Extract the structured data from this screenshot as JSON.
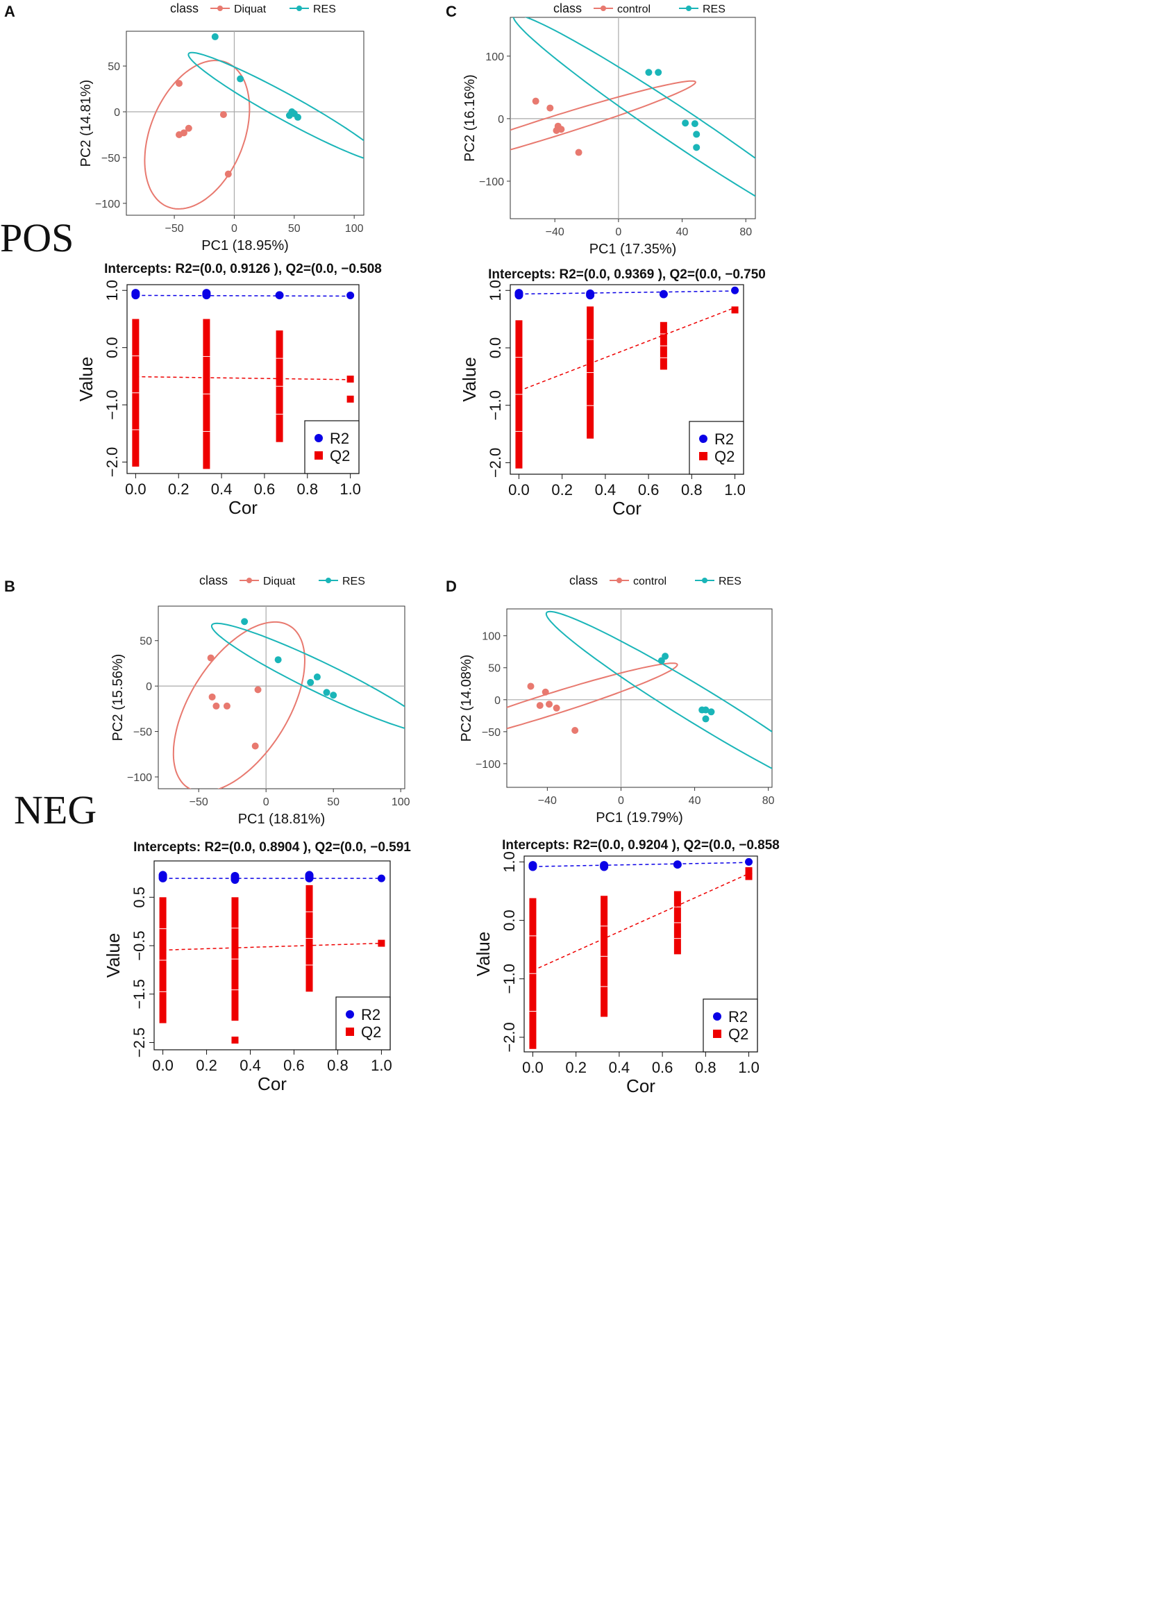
{
  "figure": {
    "panel_labels": [
      "A",
      "B",
      "C",
      "D"
    ],
    "mode_labels": {
      "pos": "POS",
      "neg": "NEG"
    }
  },
  "colors": {
    "red": "#e8796f",
    "teal": "#1ab5b8",
    "blue": "#0a00e6",
    "q2": "#ee0000",
    "axis": "#333333"
  },
  "chart_data": [
    {
      "id": "A-pca",
      "type": "scatter",
      "panel": "A",
      "legend_title": "class",
      "legend": [
        "Diquat",
        "RES"
      ],
      "xlabel": "PC1 (18.95%)",
      "ylabel": "PC2 (14.81%)",
      "xlim": [
        -90,
        108
      ],
      "ylim": [
        -113,
        88
      ],
      "xticks": [
        -50,
        0,
        50,
        100
      ],
      "yticks": [
        -100,
        -50,
        0,
        50
      ],
      "groups": [
        {
          "name": "Diquat",
          "color": "red",
          "points": [
            [
              -46,
              31
            ],
            [
              -46,
              -25
            ],
            [
              -42,
              -23
            ],
            [
              -38,
              -18
            ],
            [
              -9,
              -3
            ],
            [
              -5,
              -68
            ]
          ],
          "ellipse": {
            "cx": -31,
            "cy": -25,
            "rx": 83,
            "ry": 40,
            "angle": 76
          }
        },
        {
          "name": "RES",
          "color": "teal",
          "points": [
            [
              -16,
              82
            ],
            [
              5,
              36
            ],
            [
              46,
              -4
            ],
            [
              48,
              0
            ],
            [
              50,
              -2
            ],
            [
              53,
              -6
            ]
          ],
          "ellipse": {
            "cx": 43,
            "cy": 5,
            "rx": 100,
            "ry": 13,
            "angle": -36
          }
        }
      ]
    },
    {
      "id": "A-perm",
      "type": "scatter",
      "panel": "A",
      "title": "Intercepts: R2=(0.0, 0.9126 ), Q2=(0.0, −0.508",
      "xlabel": "Cor",
      "ylabel": "Value",
      "xlim": [
        -0.04,
        1.04
      ],
      "ylim": [
        -2.2,
        1.1
      ],
      "xticks": [
        0.0,
        0.2,
        0.4,
        0.6,
        0.8,
        1.0
      ],
      "xticklabels": [
        "0.0",
        "0.2",
        "0.4",
        "0.6",
        "0.8",
        "1.0"
      ],
      "yticks": [
        1.0,
        0.0,
        -1.0,
        -2.0
      ],
      "yticklabels": [
        "1.0",
        "0.0",
        "−1.0",
        "−2.0"
      ],
      "legend": [
        "R2",
        "Q2"
      ],
      "r2": {
        "columns": [
          {
            "x": 0,
            "min": 0.88,
            "max": 0.99
          },
          {
            "x": 0.33,
            "min": 0.88,
            "max": 0.99
          },
          {
            "x": 0.67,
            "min": 0.88,
            "max": 0.95
          }
        ],
        "points": [
          [
            1.0,
            0.9126
          ]
        ],
        "intercept": 0.9126,
        "end": 0.9
      },
      "q2": {
        "columns": [
          {
            "x": 0,
            "min": -2.08,
            "max": 0.5
          },
          {
            "x": 0.33,
            "min": -2.12,
            "max": 0.5
          },
          {
            "x": 0.67,
            "min": -1.65,
            "max": 0.3
          }
        ],
        "points": [
          [
            1.0,
            -0.55
          ],
          [
            1.0,
            -0.9
          ]
        ],
        "intercept": -0.508,
        "end": -0.56
      }
    },
    {
      "id": "C-pca",
      "type": "scatter",
      "panel": "C",
      "legend_title": "class",
      "legend": [
        "control",
        "RES"
      ],
      "xlabel": "PC1 (17.35%)",
      "ylabel": "PC2 (16.16%)",
      "xlim": [
        -68,
        86
      ],
      "ylim": [
        -160,
        162
      ],
      "xticks": [
        -40,
        0,
        40,
        80
      ],
      "yticks": [
        -100,
        0,
        100
      ],
      "groups": [
        {
          "name": "control",
          "color": "red",
          "points": [
            [
              -52,
              28
            ],
            [
              -43,
              17
            ],
            [
              -38,
              -12
            ],
            [
              -39,
              -19
            ],
            [
              -36,
              -17
            ],
            [
              -25,
              -54
            ]
          ],
          "ellipse": {
            "cx": -39,
            "cy": -11,
            "rx": 112,
            "ry": 13,
            "angle": 39
          }
        },
        {
          "name": "RES",
          "color": "teal",
          "points": [
            [
              19,
              74
            ],
            [
              25,
              74
            ],
            [
              42,
              -7
            ],
            [
              48,
              -8
            ],
            [
              49,
              -25
            ],
            [
              49,
              -46
            ]
          ],
          "ellipse": {
            "cx": 40,
            "cy": -16,
            "rx": 210,
            "ry": 17,
            "angle": -60
          }
        }
      ]
    },
    {
      "id": "C-perm",
      "type": "scatter",
      "panel": "C",
      "title": "Intercepts: R2=(0.0, 0.9369 ), Q2=(0.0, −0.750",
      "xlabel": "Cor",
      "ylabel": "Value",
      "xlim": [
        -0.04,
        1.04
      ],
      "ylim": [
        -2.2,
        1.1
      ],
      "xticks": [
        0.0,
        0.2,
        0.4,
        0.6,
        0.8,
        1.0
      ],
      "xticklabels": [
        "0.0",
        "0.2",
        "0.4",
        "0.6",
        "0.8",
        "1.0"
      ],
      "yticks": [
        1.0,
        0.0,
        -1.0,
        -2.0
      ],
      "yticklabels": [
        "1.0",
        "0.0",
        "−1.0",
        "−2.0"
      ],
      "legend": [
        "R2",
        "Q2"
      ],
      "r2": {
        "columns": [
          {
            "x": 0,
            "min": 0.88,
            "max": 0.99
          },
          {
            "x": 0.33,
            "min": 0.88,
            "max": 0.98
          },
          {
            "x": 0.67,
            "min": 0.9,
            "max": 0.97
          }
        ],
        "points": [
          [
            1.0,
            1.0
          ]
        ],
        "intercept": 0.9369,
        "end": 0.99
      },
      "q2": {
        "columns": [
          {
            "x": 0,
            "min": -2.1,
            "max": 0.48
          },
          {
            "x": 0.33,
            "min": -1.58,
            "max": 0.72
          },
          {
            "x": 0.67,
            "min": -0.38,
            "max": 0.45
          }
        ],
        "points": [
          [
            1.0,
            0.66
          ]
        ],
        "intercept": -0.75,
        "end": 0.7
      }
    },
    {
      "id": "B-pca",
      "type": "scatter",
      "panel": "B",
      "legend_title": "class",
      "legend": [
        "Diquat",
        "RES"
      ],
      "xlabel": "PC1 (18.81%)",
      "ylabel": "PC2 (15.56%)",
      "xlim": [
        -80,
        103
      ],
      "ylim": [
        -113,
        88
      ],
      "xticks": [
        -50,
        0,
        50,
        100
      ],
      "yticks": [
        -100,
        -50,
        0,
        50
      ],
      "groups": [
        {
          "name": "Diquat",
          "color": "red",
          "points": [
            [
              -41,
              31
            ],
            [
              -40,
              -12
            ],
            [
              -37,
              -22
            ],
            [
              -29,
              -22
            ],
            [
              -6,
              -4
            ],
            [
              -8,
              -66
            ]
          ],
          "ellipse": {
            "cx": -20,
            "cy": -23,
            "rx": 98,
            "ry": 39,
            "angle": 71
          }
        },
        {
          "name": "RES",
          "color": "teal",
          "points": [
            [
              -16,
              71
            ],
            [
              9,
              29
            ],
            [
              33,
              4
            ],
            [
              38,
              10
            ],
            [
              45,
              -7
            ],
            [
              50,
              -10
            ]
          ],
          "ellipse": {
            "cx": 41,
            "cy": 9,
            "rx": 100,
            "ry": 15,
            "angle": -36
          }
        }
      ]
    },
    {
      "id": "B-perm",
      "type": "scatter",
      "panel": "B",
      "title": "Intercepts: R2=(0.0, 0.8904 ), Q2=(0.0, −0.591",
      "xlabel": "Cor",
      "ylabel": "Value",
      "xlim": [
        -0.04,
        1.04
      ],
      "ylim": [
        -2.65,
        1.25
      ],
      "xticks": [
        0.0,
        0.2,
        0.4,
        0.6,
        0.8,
        1.0
      ],
      "xticklabels": [
        "0.0",
        "0.2",
        "0.4",
        "0.6",
        "0.8",
        "1.0"
      ],
      "yticks": [
        0.5,
        -0.5,
        -1.5,
        -2.5
      ],
      "yticklabels": [
        "0.5",
        "−0.5",
        "−1.5",
        "−2.5"
      ],
      "legend": [
        "R2",
        "Q2"
      ],
      "r2": {
        "columns": [
          {
            "x": 0,
            "min": 0.85,
            "max": 1.0
          },
          {
            "x": 0.33,
            "min": 0.82,
            "max": 0.98
          },
          {
            "x": 0.67,
            "min": 0.85,
            "max": 1.0
          }
        ],
        "points": [
          [
            1.0,
            0.89
          ]
        ],
        "intercept": 0.8904,
        "end": 0.89
      },
      "q2": {
        "columns": [
          {
            "x": 0,
            "min": -2.1,
            "max": 0.5
          },
          {
            "x": 0.33,
            "min": -2.05,
            "max": 0.5
          },
          {
            "x": 0.67,
            "min": -1.45,
            "max": 0.75
          }
        ],
        "points": [
          [
            0.33,
            -2.45
          ],
          [
            1.0,
            -0.45
          ]
        ],
        "intercept": -0.591,
        "end": -0.45
      }
    },
    {
      "id": "D-pca",
      "type": "scatter",
      "panel": "D",
      "legend_title": "class",
      "legend": [
        "control",
        "RES"
      ],
      "xlabel": "PC1 (19.79%)",
      "ylabel": "PC2 (14.08%)",
      "xlim": [
        -62,
        82
      ],
      "ylim": [
        -137,
        142
      ],
      "xticks": [
        -40,
        0,
        40,
        80
      ],
      "yticks": [
        -100,
        -50,
        0,
        50,
        100
      ],
      "groups": [
        {
          "name": "control",
          "color": "red",
          "points": [
            [
              -49,
              21
            ],
            [
              -41,
              12
            ],
            [
              -44,
              -9
            ],
            [
              -39,
              -7
            ],
            [
              -35,
              -13
            ],
            [
              -25,
              -48
            ]
          ],
          "ellipse": {
            "cx": -38,
            "cy": -7,
            "rx": 93,
            "ry": 13,
            "angle": 43
          }
        },
        {
          "name": "RES",
          "color": "teal",
          "points": [
            [
              22,
              61
            ],
            [
              24,
              68
            ],
            [
              44,
              -16
            ],
            [
              46,
              -16
            ],
            [
              49,
              -19
            ],
            [
              46,
              -30
            ]
          ],
          "ellipse": {
            "cx": 43,
            "cy": -11,
            "rx": 170,
            "ry": 16,
            "angle": -61
          }
        }
      ]
    },
    {
      "id": "D-perm",
      "type": "scatter",
      "panel": "D",
      "title": "Intercepts: R2=(0.0, 0.9204 ), Q2=(0.0, −0.858",
      "xlabel": "Cor",
      "ylabel": "Value",
      "xlim": [
        -0.04,
        1.04
      ],
      "ylim": [
        -2.25,
        1.1
      ],
      "xticks": [
        0.0,
        0.2,
        0.4,
        0.6,
        0.8,
        1.0
      ],
      "xticklabels": [
        "0.0",
        "0.2",
        "0.4",
        "0.6",
        "0.8",
        "1.0"
      ],
      "yticks": [
        1.0,
        0.0,
        -1.0,
        -2.0
      ],
      "yticklabels": [
        "1.0",
        "0.0",
        "−1.0",
        "−2.0"
      ],
      "legend": [
        "R2",
        "Q2"
      ],
      "r2": {
        "columns": [
          {
            "x": 0,
            "min": 0.88,
            "max": 0.98
          },
          {
            "x": 0.33,
            "min": 0.88,
            "max": 0.98
          },
          {
            "x": 0.67,
            "min": 0.92,
            "max": 0.99
          }
        ],
        "points": [
          [
            1.0,
            1.0
          ]
        ],
        "intercept": 0.9204,
        "end": 0.99
      },
      "q2": {
        "columns": [
          {
            "x": 0,
            "min": -2.2,
            "max": 0.38
          },
          {
            "x": 0.33,
            "min": -1.65,
            "max": 0.42
          },
          {
            "x": 0.67,
            "min": -0.58,
            "max": 0.5
          }
        ],
        "points": [
          [
            1.0,
            0.75
          ],
          [
            1.0,
            0.85
          ]
        ],
        "intercept": -0.858,
        "end": 0.8
      }
    }
  ]
}
